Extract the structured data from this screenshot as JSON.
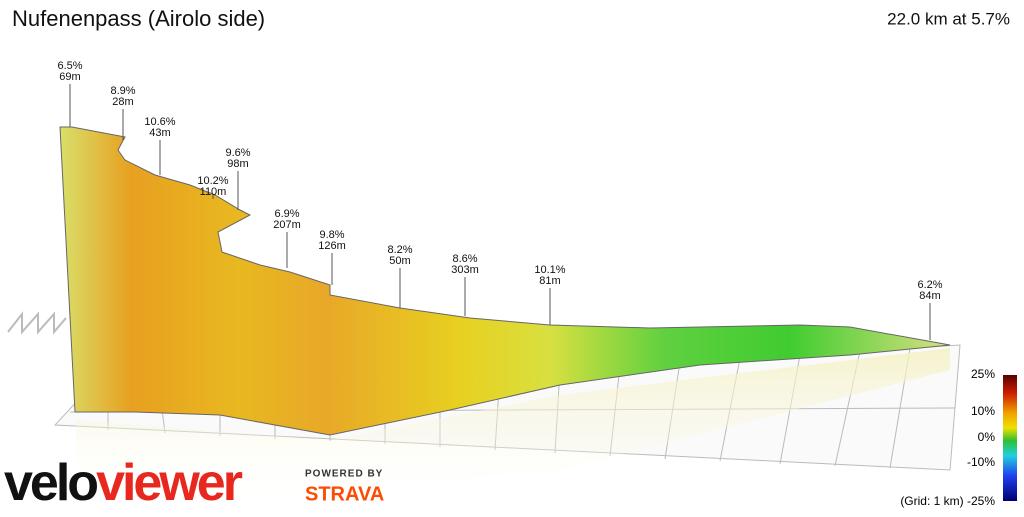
{
  "header": {
    "title": "Nufenenpass (Airolo side)",
    "summary": "22.0 km at 5.7%"
  },
  "annotations": [
    {
      "gradient": "6.5%",
      "length": "69m"
    },
    {
      "gradient": "8.9%",
      "length": "28m"
    },
    {
      "gradient": "10.6%",
      "length": "43m"
    },
    {
      "gradient": "9.6%",
      "length": "98m"
    },
    {
      "gradient": "10.2%",
      "length": "110m"
    },
    {
      "gradient": "6.9%",
      "length": "207m"
    },
    {
      "gradient": "9.8%",
      "length": "126m"
    },
    {
      "gradient": "8.2%",
      "length": "50m"
    },
    {
      "gradient": "8.6%",
      "length": "303m"
    },
    {
      "gradient": "10.1%",
      "length": "81m"
    },
    {
      "gradient": "6.2%",
      "length": "84m"
    }
  ],
  "color_scale": {
    "labels": [
      "25%",
      "10%",
      "0%",
      "-10%"
    ],
    "grid_note": "(Grid: 1 km) -25%"
  },
  "brand": {
    "logo_prefix": "velo",
    "logo_suffix": "viewer",
    "powered_by": "POWERED BY",
    "partner": "STRAVA"
  }
}
